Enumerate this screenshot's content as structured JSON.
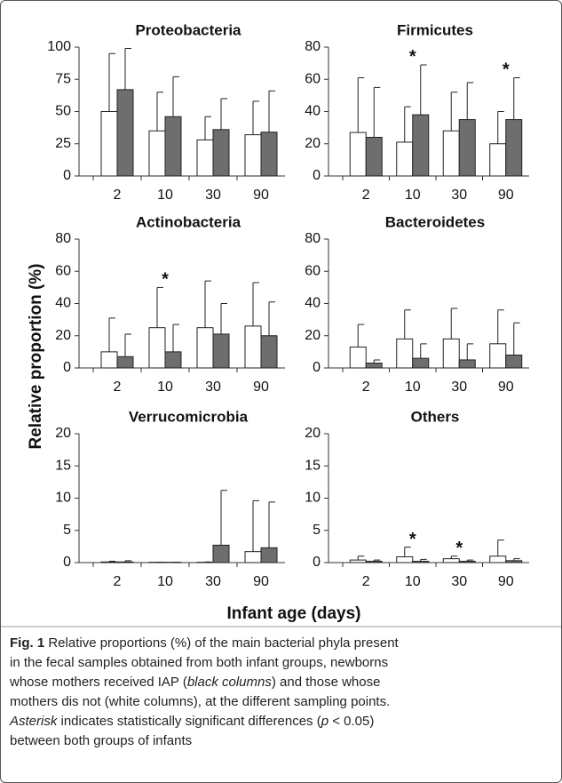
{
  "chart_data": [
    {
      "type": "bar",
      "title": "Proteobacteria",
      "categories": [
        "2",
        "10",
        "30",
        "90"
      ],
      "ylim": [
        0,
        100
      ],
      "yticks": [
        0,
        25,
        50,
        75,
        100
      ],
      "series": [
        {
          "color": "#ffffff",
          "values": [
            50,
            35,
            28,
            32
          ],
          "errors": [
            45,
            30,
            18,
            26
          ]
        },
        {
          "color": "#6e6e6e",
          "values": [
            67,
            46,
            36,
            34
          ],
          "errors": [
            32,
            31,
            24,
            32
          ]
        }
      ],
      "annotations": []
    },
    {
      "type": "bar",
      "title": "Firmicutes",
      "categories": [
        "2",
        "10",
        "30",
        "90"
      ],
      "ylim": [
        0,
        80
      ],
      "yticks": [
        0,
        20,
        40,
        60,
        80
      ],
      "series": [
        {
          "color": "#ffffff",
          "values": [
            27,
            21,
            28,
            20
          ],
          "errors": [
            34,
            22,
            24,
            20
          ]
        },
        {
          "color": "#6e6e6e",
          "values": [
            24,
            38,
            35,
            35
          ],
          "errors": [
            31,
            31,
            23,
            26
          ]
        }
      ],
      "annotations": [
        {
          "text": "*",
          "category": "10"
        },
        {
          "text": "*",
          "category": "90"
        }
      ]
    },
    {
      "type": "bar",
      "title": "Actinobacteria",
      "categories": [
        "2",
        "10",
        "30",
        "90"
      ],
      "ylim": [
        0,
        80
      ],
      "yticks": [
        0,
        20,
        40,
        60,
        80
      ],
      "series": [
        {
          "color": "#ffffff",
          "values": [
            10,
            25,
            25,
            26
          ],
          "errors": [
            21,
            25,
            29,
            27
          ]
        },
        {
          "color": "#6e6e6e",
          "values": [
            7,
            10,
            21,
            20
          ],
          "errors": [
            14,
            17,
            19,
            21
          ]
        }
      ],
      "annotations": [
        {
          "text": "*",
          "category": "10"
        }
      ]
    },
    {
      "type": "bar",
      "title": "Bacteroidetes",
      "categories": [
        "2",
        "10",
        "30",
        "90"
      ],
      "ylim": [
        0,
        80
      ],
      "yticks": [
        0,
        20,
        40,
        60,
        80
      ],
      "series": [
        {
          "color": "#ffffff",
          "values": [
            13,
            18,
            18,
            15
          ],
          "errors": [
            14,
            18,
            19,
            21
          ]
        },
        {
          "color": "#6e6e6e",
          "values": [
            3,
            6,
            5,
            8
          ],
          "errors": [
            2,
            9,
            10,
            20
          ]
        }
      ],
      "annotations": []
    },
    {
      "type": "bar",
      "title": "Verrucomicrobia",
      "categories": [
        "2",
        "10",
        "30",
        "90"
      ],
      "ylim": [
        0,
        20
      ],
      "yticks": [
        0,
        5,
        10,
        15,
        20
      ],
      "series": [
        {
          "color": "#ffffff",
          "values": [
            0.1,
            0.05,
            0.05,
            1.7
          ],
          "errors": [
            0.1,
            0,
            0.05,
            7.9
          ]
        },
        {
          "color": "#6e6e6e",
          "values": [
            0.1,
            0.05,
            2.7,
            2.3
          ],
          "errors": [
            0.2,
            0,
            8.5,
            7.1
          ]
        }
      ],
      "annotations": []
    },
    {
      "type": "bar",
      "title": "Others",
      "categories": [
        "2",
        "10",
        "30",
        "90"
      ],
      "ylim": [
        0,
        20
      ],
      "yticks": [
        0,
        5,
        10,
        15,
        20
      ],
      "series": [
        {
          "color": "#ffffff",
          "values": [
            0.4,
            0.9,
            0.6,
            1.0
          ],
          "errors": [
            0.6,
            1.5,
            0.4,
            2.5
          ]
        },
        {
          "color": "#6e6e6e",
          "values": [
            0.2,
            0.2,
            0.2,
            0.3
          ],
          "errors": [
            0.2,
            0.3,
            0.2,
            0.3
          ]
        }
      ],
      "annotations": [
        {
          "text": "*",
          "category": "10"
        },
        {
          "text": "*",
          "category": "30"
        }
      ]
    }
  ],
  "ylabel": "Relative proportion (%)",
  "xlabel": "Infant age (days)",
  "caption": {
    "lines": [
      [
        {
          "text": "Fig. 1",
          "style": "bold"
        },
        {
          "text": " Relative proportions (%) of the main bacterial phyla present",
          "style": "normal"
        }
      ],
      [
        {
          "text": "in the fecal samples obtained from both infant groups, newborns",
          "style": "normal"
        }
      ],
      [
        {
          "text": "whose mothers received IAP (",
          "style": "normal"
        },
        {
          "text": "black columns",
          "style": "italic"
        },
        {
          "text": ") and those whose",
          "style": "normal"
        }
      ],
      [
        {
          "text": "mothers dis not (white columns), at the different sampling points.",
          "style": "normal"
        }
      ],
      [
        {
          "text": "Asterisk",
          "style": "italic"
        },
        {
          "text": " indicates statistically significant differences (",
          "style": "normal"
        },
        {
          "text": "p",
          "style": "italic"
        },
        {
          "text": " < 0.05)",
          "style": "normal"
        }
      ],
      [
        {
          "text": "between both groups of infants",
          "style": "normal"
        }
      ]
    ]
  }
}
